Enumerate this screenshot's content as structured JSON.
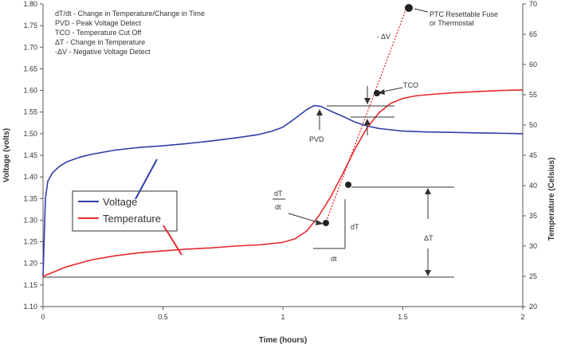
{
  "chart_data": {
    "type": "line",
    "xlabel": "Time (hours)",
    "ylabel": "Voltage (volts)",
    "y2label": "Temperature (Celsius)",
    "xlim": [
      0,
      2
    ],
    "ylim": [
      1.1,
      1.8
    ],
    "y2lim": [
      20,
      70
    ],
    "x_ticks": [
      "0",
      "0.5",
      "1",
      "1.5",
      "2"
    ],
    "y_ticks": [
      "1.10",
      "1.15",
      "1.20",
      "1.25",
      "1.30",
      "1.35",
      "1.40",
      "1.45",
      "1.50",
      "1.55",
      "1.60",
      "1.65",
      "1.70",
      "1.75",
      "1.80"
    ],
    "y2_ticks": [
      "20",
      "25",
      "30",
      "35",
      "40",
      "45",
      "50",
      "55",
      "60",
      "65",
      "70"
    ],
    "grid": false,
    "legend_position": "left",
    "colors": {
      "voltage": "#2f3fa8",
      "temperature": "#e8292d",
      "ptc_line": "#e8292d",
      "annotation": "#333333"
    },
    "definitions": [
      "dT/dt - Change in Temperature/Change in Time",
      "PVD - Peak Voltage Detect",
      "TCO - Temperature Cut Off",
      "ΔT - Change in Temperature",
      "-ΔV - Negative Voltage Detect"
    ],
    "series": [
      {
        "name": "Voltage",
        "axis": "left",
        "x": [
          0.0,
          0.01,
          0.02,
          0.04,
          0.07,
          0.1,
          0.15,
          0.2,
          0.3,
          0.4,
          0.5,
          0.6,
          0.7,
          0.8,
          0.9,
          0.95,
          1.0,
          1.05,
          1.1,
          1.13,
          1.16,
          1.2,
          1.25,
          1.3,
          1.35,
          1.4,
          1.45,
          1.5,
          1.6,
          1.7,
          1.8,
          1.9,
          2.0
        ],
        "values": [
          1.17,
          1.35,
          1.39,
          1.41,
          1.425,
          1.435,
          1.445,
          1.452,
          1.462,
          1.468,
          1.472,
          1.477,
          1.483,
          1.49,
          1.498,
          1.505,
          1.515,
          1.535,
          1.556,
          1.565,
          1.563,
          1.552,
          1.54,
          1.527,
          1.518,
          1.512,
          1.509,
          1.506,
          1.504,
          1.503,
          1.502,
          1.501,
          1.5
        ]
      },
      {
        "name": "Temperature",
        "axis": "right",
        "x": [
          0.0,
          0.05,
          0.1,
          0.2,
          0.3,
          0.4,
          0.5,
          0.6,
          0.7,
          0.8,
          0.9,
          1.0,
          1.05,
          1.1,
          1.15,
          1.2,
          1.25,
          1.3,
          1.35,
          1.4,
          1.45,
          1.5,
          1.55,
          1.6,
          1.7,
          1.8,
          1.9,
          2.0
        ],
        "values": [
          25.0,
          25.8,
          26.6,
          27.7,
          28.4,
          28.9,
          29.2,
          29.5,
          29.7,
          30.0,
          30.2,
          30.6,
          31.2,
          32.5,
          35.0,
          38.2,
          42.0,
          46.0,
          49.5,
          52.0,
          53.6,
          54.4,
          54.8,
          55.0,
          55.3,
          55.5,
          55.7,
          55.8
        ]
      }
    ],
    "ptc_line": {
      "x": [
        1.18,
        1.52
      ],
      "y2": [
        34.0,
        69.8
      ]
    },
    "annotations": {
      "ptc": "PTC Resettable Fuse\nor Thermostat",
      "neg_dv": "- ΔV",
      "tco": "TCO",
      "pvd": "PVD",
      "dtdt_num": "dT",
      "dtdt_den": "dt",
      "dT": "dT",
      "dt": "dt",
      "delta_t": "ΔT"
    }
  }
}
